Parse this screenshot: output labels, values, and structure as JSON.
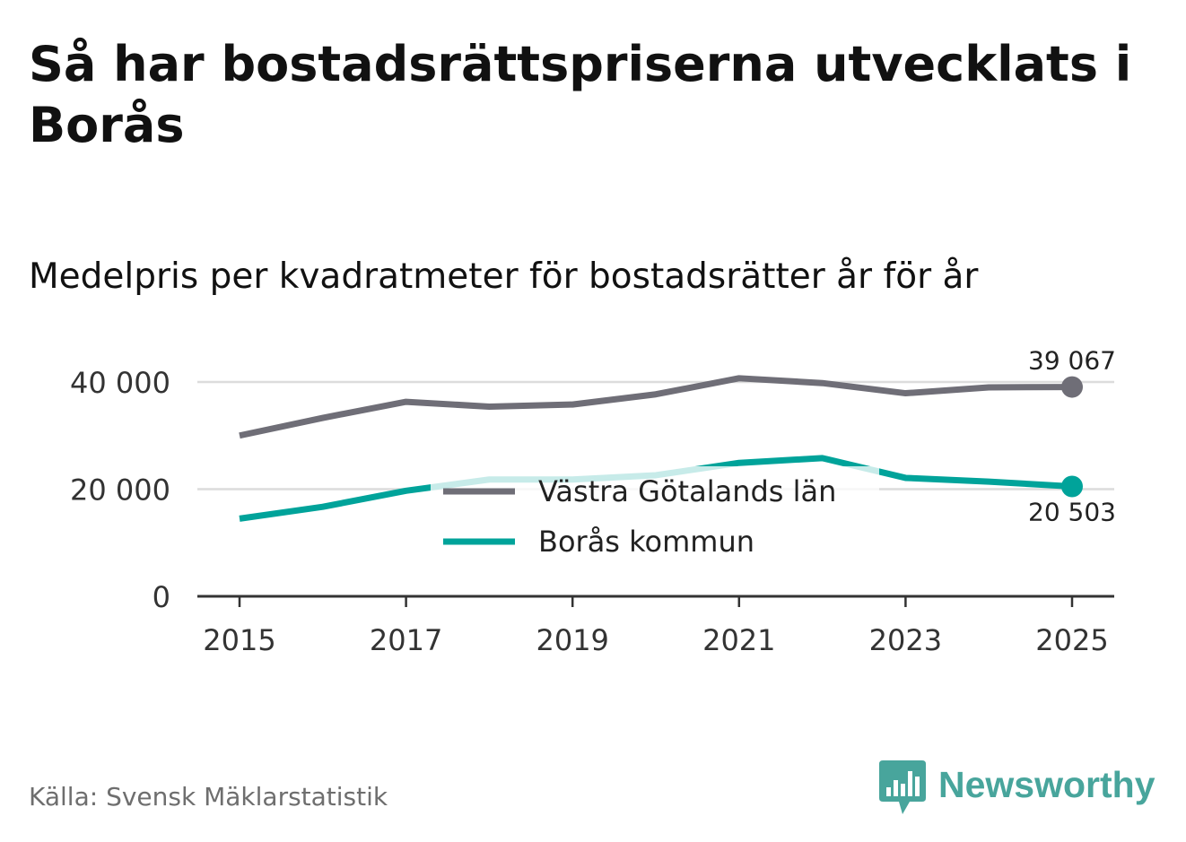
{
  "title": "Så har bostadsrättspriserna utvecklats i Borås",
  "subtitle": "Medelpris per kvadratmeter för bostadsrätter år för år",
  "source": "Källa: Svensk Mäklarstatistik",
  "brand": {
    "name": "Newsworthy",
    "logo_icon": "bar-chart-speech-bubble-icon",
    "color": "#48a59c"
  },
  "chart_data": {
    "type": "line",
    "title": "Medelpris per kvadratmeter för bostadsrätter år för år",
    "xlabel": "",
    "ylabel": "",
    "x": [
      2015,
      2016,
      2017,
      2018,
      2019,
      2020,
      2021,
      2022,
      2023,
      2024,
      2025
    ],
    "x_ticks": [
      "2015",
      "2017",
      "2019",
      "2021",
      "2023",
      "2025"
    ],
    "x_tick_values": [
      2015,
      2017,
      2019,
      2021,
      2023,
      2025
    ],
    "y_ticks": [
      "0",
      "20 000",
      "40 000"
    ],
    "y_tick_values": [
      0,
      20000,
      40000
    ],
    "ylim": [
      0,
      40000
    ],
    "xlim": [
      2015,
      2025
    ],
    "grid": true,
    "legend_position": "center",
    "series": [
      {
        "name": "Västra Götalands län",
        "color": "#6f6e77",
        "values": [
          30000,
          33300,
          36300,
          35400,
          35800,
          37700,
          40700,
          39800,
          37900,
          39000,
          39067
        ],
        "end_label": "39 067",
        "end_label_position": "above"
      },
      {
        "name": "Borås kommun",
        "color": "#00a39a",
        "values": [
          14500,
          16700,
          19700,
          21800,
          21800,
          22600,
          24900,
          25800,
          22100,
          21400,
          20503
        ],
        "end_label": "20 503",
        "end_label_position": "below"
      }
    ]
  }
}
